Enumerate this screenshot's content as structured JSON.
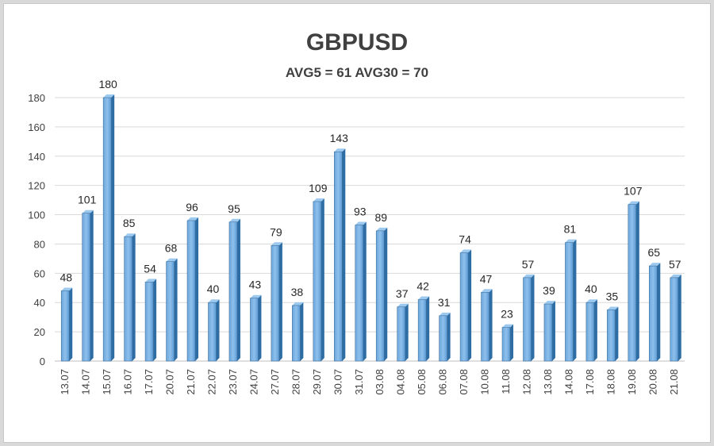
{
  "chart_data": {
    "type": "bar",
    "title": "GBPUSD",
    "subtitle": "AVG5 = 61 AVG30 = 70",
    "xlabel": "",
    "ylabel": "",
    "ylim": [
      0,
      180
    ],
    "yticks": [
      0,
      20,
      40,
      60,
      80,
      100,
      120,
      140,
      160,
      180
    ],
    "grid": true,
    "legend": "none",
    "bar_color": "#5b9bd5",
    "categories": [
      "13.07",
      "14.07",
      "15.07",
      "16.07",
      "17.07",
      "20.07",
      "21.07",
      "22.07",
      "23.07",
      "24.07",
      "27.07",
      "28.07",
      "29.07",
      "30.07",
      "31.07",
      "03.08",
      "04.08",
      "05.08",
      "06.08",
      "07.08",
      "10.08",
      "11.08",
      "12.08",
      "13.08",
      "14.08",
      "17.08",
      "18.08",
      "19.08",
      "20.08",
      "21.08"
    ],
    "values": [
      48,
      101,
      180,
      85,
      54,
      68,
      96,
      40,
      95,
      43,
      79,
      38,
      109,
      143,
      93,
      89,
      37,
      42,
      31,
      74,
      47,
      23,
      57,
      39,
      81,
      40,
      35,
      107,
      65,
      57
    ]
  }
}
